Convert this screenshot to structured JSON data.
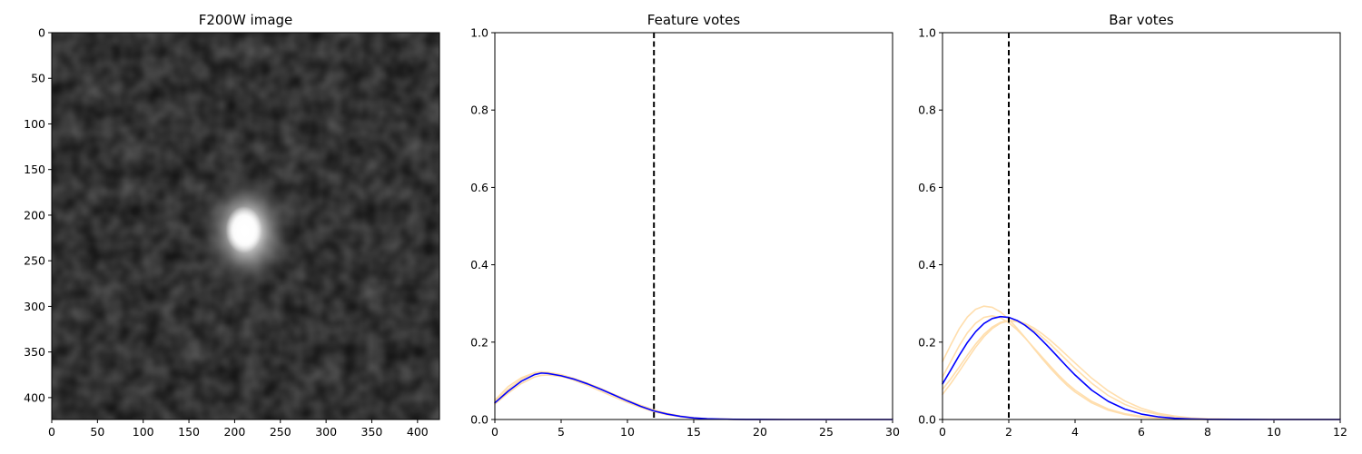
{
  "chart_data": [
    {
      "type": "image",
      "title": "F200W image",
      "xlim": [
        0,
        424
      ],
      "ylim": [
        424,
        0
      ],
      "xticks": [
        0,
        50,
        100,
        150,
        200,
        250,
        300,
        350,
        400
      ],
      "yticks": [
        0,
        50,
        100,
        150,
        200,
        250,
        300,
        350,
        400
      ],
      "colormap": "gray",
      "source": {
        "x": 213,
        "y": 218
      }
    },
    {
      "type": "line",
      "title": "Feature votes",
      "xlim": [
        0,
        30
      ],
      "ylim": [
        0,
        1.0
      ],
      "xticks": [
        0,
        5,
        10,
        15,
        20,
        25,
        30
      ],
      "yticks": [
        0.0,
        0.2,
        0.4,
        0.6,
        0.8,
        1.0
      ],
      "vline": 12,
      "series": [
        {
          "color": "#0000ff",
          "x": [
            0,
            1,
            2,
            3,
            3.5,
            4,
            5,
            6,
            7,
            8,
            9,
            10,
            11,
            12,
            13,
            14,
            15,
            16,
            17,
            18,
            19,
            20,
            22,
            24,
            26,
            28,
            30
          ],
          "y": [
            0.043,
            0.073,
            0.099,
            0.116,
            0.12,
            0.119,
            0.113,
            0.104,
            0.092,
            0.078,
            0.063,
            0.048,
            0.034,
            0.022,
            0.014,
            0.008,
            0.004,
            0.002,
            0.001,
            0.0005,
            0.0002,
            0.0001,
            0,
            0,
            0,
            0,
            0
          ]
        },
        {
          "color": "#ffdead",
          "x": [
            0,
            1,
            2,
            3,
            3.5,
            4,
            5,
            6,
            7,
            8,
            9,
            10,
            11,
            12,
            13,
            14,
            15,
            16,
            17,
            18,
            19,
            20,
            22,
            24,
            26,
            28,
            30
          ],
          "y": [
            0.05,
            0.085,
            0.108,
            0.121,
            0.123,
            0.121,
            0.113,
            0.101,
            0.088,
            0.073,
            0.058,
            0.044,
            0.031,
            0.02,
            0.012,
            0.007,
            0.003,
            0.002,
            0.001,
            0.0004,
            0.0002,
            0.0001,
            0,
            0,
            0,
            0,
            0
          ]
        },
        {
          "color": "#ffdead",
          "x": [
            0,
            1,
            2,
            3,
            3.5,
            4,
            5,
            6,
            7,
            8,
            9,
            10,
            11,
            12,
            13,
            14,
            15,
            16,
            17,
            18,
            19,
            20,
            22,
            24,
            26,
            28,
            30
          ],
          "y": [
            0.04,
            0.068,
            0.093,
            0.11,
            0.114,
            0.115,
            0.111,
            0.103,
            0.092,
            0.079,
            0.065,
            0.05,
            0.037,
            0.025,
            0.016,
            0.009,
            0.005,
            0.002,
            0.001,
            0.0005,
            0.0002,
            0.0001,
            0,
            0,
            0,
            0,
            0
          ]
        },
        {
          "color": "#ffdead",
          "x": [
            0,
            1,
            2,
            3,
            3.5,
            4,
            5,
            6,
            7,
            8,
            9,
            10,
            11,
            12,
            13,
            14,
            15,
            16,
            17,
            18,
            19,
            20,
            22,
            24,
            26,
            28,
            30
          ],
          "y": [
            0.046,
            0.078,
            0.104,
            0.12,
            0.123,
            0.122,
            0.116,
            0.106,
            0.094,
            0.08,
            0.065,
            0.05,
            0.036,
            0.024,
            0.015,
            0.008,
            0.004,
            0.002,
            0.001,
            0.0005,
            0.0002,
            0.0001,
            0,
            0,
            0,
            0,
            0
          ]
        }
      ]
    },
    {
      "type": "line",
      "title": "Bar votes",
      "xlim": [
        0,
        12
      ],
      "ylim": [
        0,
        1.0
      ],
      "xticks": [
        0,
        2,
        4,
        6,
        8,
        10,
        12
      ],
      "yticks": [
        0.0,
        0.2,
        0.4,
        0.6,
        0.8,
        1.0
      ],
      "vline": 2,
      "series": [
        {
          "color": "#0000ff",
          "x": [
            0,
            0.25,
            0.5,
            0.75,
            1,
            1.25,
            1.5,
            1.75,
            2,
            2.25,
            2.5,
            2.75,
            3,
            3.25,
            3.5,
            3.75,
            4,
            4.5,
            5,
            5.5,
            6,
            6.5,
            7,
            7.5,
            8,
            9,
            10,
            11,
            12
          ],
          "y": [
            0.092,
            0.128,
            0.165,
            0.199,
            0.227,
            0.248,
            0.261,
            0.266,
            0.264,
            0.256,
            0.243,
            0.226,
            0.205,
            0.183,
            0.16,
            0.137,
            0.115,
            0.076,
            0.047,
            0.027,
            0.014,
            0.007,
            0.003,
            0.0013,
            0.0005,
            0.0001,
            0,
            0,
            0
          ]
        },
        {
          "color": "#ffdead",
          "x": [
            0,
            0.25,
            0.5,
            0.75,
            1,
            1.25,
            1.5,
            1.75,
            2,
            2.25,
            2.5,
            2.75,
            3,
            3.25,
            3.5,
            3.75,
            4,
            4.5,
            5,
            5.5,
            6,
            6.5,
            7,
            7.5,
            8,
            9,
            10,
            11,
            12
          ],
          "y": [
            0.15,
            0.193,
            0.234,
            0.265,
            0.285,
            0.293,
            0.29,
            0.278,
            0.259,
            0.236,
            0.211,
            0.184,
            0.158,
            0.133,
            0.11,
            0.089,
            0.071,
            0.043,
            0.024,
            0.013,
            0.006,
            0.003,
            0.001,
            0.0005,
            0.0002,
            0,
            0,
            0,
            0
          ]
        },
        {
          "color": "#ffdead",
          "x": [
            0,
            0.25,
            0.5,
            0.75,
            1,
            1.25,
            1.5,
            1.75,
            2,
            2.25,
            2.5,
            2.75,
            3,
            3.25,
            3.5,
            3.75,
            4,
            4.5,
            5,
            5.5,
            6,
            6.5,
            7,
            7.5,
            8,
            9,
            10,
            11,
            12
          ],
          "y": [
            0.065,
            0.093,
            0.124,
            0.156,
            0.187,
            0.214,
            0.235,
            0.249,
            0.255,
            0.253,
            0.245,
            0.231,
            0.214,
            0.195,
            0.174,
            0.153,
            0.132,
            0.094,
            0.062,
            0.039,
            0.023,
            0.013,
            0.006,
            0.003,
            0.0013,
            0.0002,
            0,
            0,
            0
          ]
        },
        {
          "color": "#ffdead",
          "x": [
            0,
            0.25,
            0.5,
            0.75,
            1,
            1.25,
            1.5,
            1.75,
            2,
            2.25,
            2.5,
            2.75,
            3,
            3.25,
            3.5,
            3.75,
            4,
            4.5,
            5,
            5.5,
            6,
            6.5,
            7,
            7.5,
            8,
            9,
            10,
            11,
            12
          ],
          "y": [
            0.078,
            0.105,
            0.135,
            0.166,
            0.195,
            0.22,
            0.239,
            0.251,
            0.256,
            0.255,
            0.248,
            0.237,
            0.222,
            0.205,
            0.186,
            0.166,
            0.146,
            0.107,
            0.074,
            0.048,
            0.029,
            0.016,
            0.009,
            0.004,
            0.002,
            0.0003,
            0,
            0,
            0
          ]
        },
        {
          "color": "#ffdead",
          "x": [
            0,
            0.25,
            0.5,
            0.75,
            1,
            1.25,
            1.5,
            1.75,
            2,
            2.25,
            2.5,
            2.75,
            3,
            3.25,
            3.5,
            3.75,
            4,
            4.5,
            5,
            5.5,
            6,
            6.5,
            7,
            7.5,
            8,
            9,
            10,
            11,
            12
          ],
          "y": [
            0.11,
            0.15,
            0.19,
            0.224,
            0.249,
            0.264,
            0.268,
            0.263,
            0.25,
            0.232,
            0.21,
            0.186,
            0.162,
            0.138,
            0.115,
            0.094,
            0.076,
            0.047,
            0.027,
            0.015,
            0.008,
            0.004,
            0.002,
            0.0007,
            0.0003,
            0,
            0,
            0,
            0
          ]
        }
      ]
    }
  ]
}
